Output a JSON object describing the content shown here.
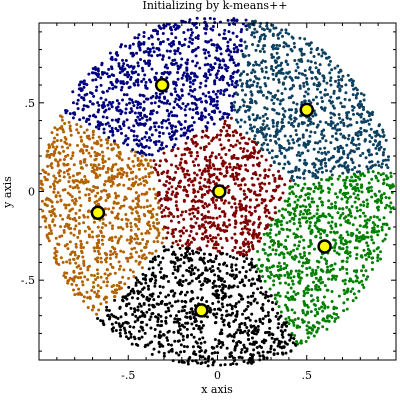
{
  "chart_data": {
    "type": "scatter",
    "title": "Initializing by k-means++",
    "xlabel": "x axis",
    "ylabel": "y axis",
    "xlim": [
      -1.0,
      1.0
    ],
    "ylim": [
      -0.95,
      0.95
    ],
    "x_ticks": [
      {
        "value": -0.5,
        "label": "-.5"
      },
      {
        "value": 0,
        "label": "0"
      },
      {
        "value": 0.5,
        "label": ".5"
      }
    ],
    "y_ticks": [
      {
        "value": -0.5,
        "label": "-.5"
      },
      {
        "value": 0,
        "label": "0"
      },
      {
        "value": 0.5,
        "label": ".5"
      }
    ],
    "grid": false,
    "disk": {
      "center": [
        0,
        0
      ],
      "radius": 0.99
    },
    "clusters": [
      {
        "color": "#000080",
        "centroid": [
          -0.31,
          0.6
        ]
      },
      {
        "color": "#0e4060",
        "centroid": [
          0.5,
          0.46
        ]
      },
      {
        "color": "#800000",
        "centroid": [
          0.01,
          0.0
        ]
      },
      {
        "color": "#b36200",
        "centroid": [
          -0.67,
          -0.12
        ]
      },
      {
        "color": "#008000",
        "centroid": [
          0.6,
          -0.31
        ]
      },
      {
        "color": "#000000",
        "centroid": [
          -0.09,
          -0.67
        ]
      }
    ],
    "centroid_style": {
      "fill": "#ffff00",
      "stroke": "#000000"
    }
  }
}
